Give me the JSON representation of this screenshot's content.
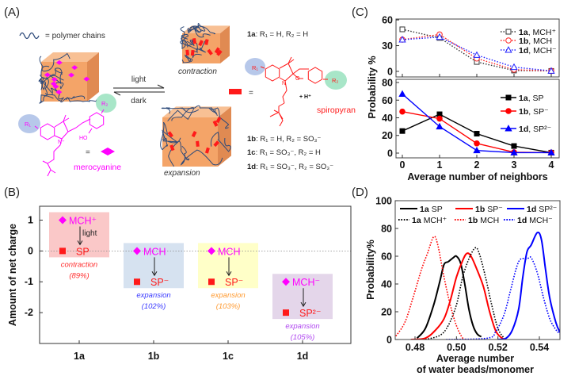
{
  "panel_labels": {
    "a": "(A)",
    "b": "(B)",
    "c": "(C)",
    "d": "(D)"
  },
  "panel_a": {
    "legend_polymer": "= polymer chains",
    "light": "light",
    "dark": "dark",
    "contraction": "contraction",
    "expansion": "expansion",
    "equals": "=",
    "spiropyran": "spiropyran",
    "h_plus": "+ H⁺",
    "merocyanine": "merocyanine",
    "struct_labels": {
      "r1": "R₁",
      "r2": "R₂",
      "n": "N",
      "o": "O",
      "ho": "HO",
      "n_plus": "N⁺"
    },
    "compounds": [
      {
        "id": "1a",
        "def": ":  R₁ = H, R₂ = H"
      },
      {
        "id": "1b",
        "def": ":  R₁ = H, R₂ = SO₃⁻"
      },
      {
        "id": "1c",
        "def": ":  R₁ = SO₃⁻, R₂ = H"
      },
      {
        "id": "1d",
        "def": ":  R₁ = SO₃⁻, R₂ = SO₃⁻"
      }
    ],
    "colors": {
      "merocyanine": "#ff00ff",
      "spiropyran": "#ff1a1a",
      "cube": "#f4a468",
      "chain": "#2d4a7a",
      "r1_highlight": "#b7c8ea",
      "r2_highlight": "#a8e6c8"
    }
  },
  "chart_data": [
    {
      "panel": "B",
      "type": "scatter",
      "categories": [
        "1a",
        "1b",
        "1c",
        "1d"
      ],
      "ylabel": "Amount of net charge",
      "yticks": [
        1,
        0,
        -1,
        -2
      ],
      "ylim": [
        -3.0,
        1.45
      ],
      "reference_line": 0,
      "groups": [
        {
          "from": {
            "label": "MCH⁺",
            "value": 1
          },
          "to": {
            "label": "SP",
            "value": 0
          },
          "arrow_label": "light",
          "effect": "contraction",
          "percent": "(89%)",
          "box_color": "#fac8c8",
          "text_color": "#ff2a2a"
        },
        {
          "from": {
            "label": "MCH",
            "value": 0
          },
          "to": {
            "label": "SP⁻",
            "value": -1
          },
          "arrow_label": "",
          "effect": "expansion",
          "percent": "(102%)",
          "box_color": "#d6e2f0",
          "text_color": "#3a3aff"
        },
        {
          "from": {
            "label": "MCH",
            "value": 0
          },
          "to": {
            "label": "SP⁻",
            "value": -1
          },
          "arrow_label": "",
          "effect": "expansion",
          "percent": "(103%)",
          "box_color": "#ffffc8",
          "text_color": "#ff9a30"
        },
        {
          "from": {
            "label": "MCH⁻",
            "value": -1
          },
          "to": {
            "label": "SP²⁻",
            "value": -2
          },
          "arrow_label": "",
          "effect": "expansion",
          "percent": "(105%)",
          "box_color": "#e4d6ea",
          "text_color": "#b048f0"
        }
      ],
      "colors": {
        "mch_marker": "#ff00ff",
        "sp_marker": "#ff1a1a",
        "mch_text": "#ff00ff",
        "sp_text": "#ff1a1a"
      }
    },
    {
      "panel": "C-top",
      "type": "line",
      "x": [
        0,
        1,
        2,
        3,
        4
      ],
      "ylim": [
        -6.5,
        61
      ],
      "yticks": [
        0,
        30,
        60
      ],
      "line_style": "dotted",
      "legend_position": "top-right",
      "sep": ", ",
      "series": [
        {
          "id": "1a",
          "species": "MCH⁺",
          "values": [
            49,
            39,
            11,
            1,
            0.5
          ],
          "color": "#333333",
          "marker": "square-open"
        },
        {
          "id": "1b",
          "species": "MCH",
          "values": [
            37,
            43,
            15,
            2,
            0.5
          ],
          "color": "#ff2020",
          "marker": "circle-open"
        },
        {
          "id": "1d",
          "species": "MCH⁻",
          "values": [
            37,
            40,
            19,
            5,
            0.5
          ],
          "color": "#2020ff",
          "marker": "triangle-open"
        }
      ]
    },
    {
      "panel": "C-bottom",
      "type": "line",
      "x": [
        0,
        1,
        2,
        3,
        4
      ],
      "xticks": [
        0,
        1,
        2,
        3,
        4
      ],
      "xlabel": "Average number of neighbors",
      "ylabel": "Probability %",
      "ylim": [
        -5.4,
        83.6
      ],
      "yticks": [
        0,
        20,
        40,
        60,
        80
      ],
      "line_style": "solid",
      "legend_position": "top-right",
      "sep": ", ",
      "series": [
        {
          "id": "1a",
          "species": "SP",
          "values": [
            25,
            44,
            22,
            8,
            0.5
          ],
          "color": "#000000",
          "marker": "square"
        },
        {
          "id": "1b",
          "species": "SP⁻",
          "values": [
            47,
            39,
            11,
            1,
            0.5
          ],
          "color": "#ff0000",
          "marker": "circle"
        },
        {
          "id": "1d",
          "species": "SP²⁻",
          "values": [
            67,
            30,
            3,
            0.5,
            0.5
          ],
          "color": "#0000ff",
          "marker": "triangle"
        }
      ]
    },
    {
      "panel": "D",
      "type": "line",
      "xlim": [
        0.47,
        0.55
      ],
      "xticks": [
        "0.48",
        "0.50",
        "0.52",
        "0.54"
      ],
      "ylim": [
        0,
        100
      ],
      "yticks": [
        0,
        20,
        40,
        60,
        80,
        100
      ],
      "ylabel": "Probability%",
      "xlabel_lines": [
        "Average number",
        "of water beads/monomer"
      ],
      "legend_position": "top",
      "series": [
        {
          "id": "1a",
          "species": "SP",
          "style": "solid",
          "color": "#000000",
          "points": [
            [
              0.481,
              1
            ],
            [
              0.485,
              8
            ],
            [
              0.489,
              25
            ],
            [
              0.492,
              42
            ],
            [
              0.494,
              54
            ],
            [
              0.496,
              56
            ],
            [
              0.4985,
              59
            ],
            [
              0.5,
              60
            ],
            [
              0.502,
              55
            ],
            [
              0.504,
              40
            ],
            [
              0.506,
              22
            ],
            [
              0.508,
              10
            ],
            [
              0.51,
              4
            ],
            [
              0.512,
              2
            ]
          ]
        },
        {
          "id": "1b",
          "species": "SP⁻",
          "style": "solid",
          "color": "#ff0000",
          "points": [
            [
              0.478,
              0
            ],
            [
              0.485,
              1
            ],
            [
              0.49,
              7
            ],
            [
              0.494,
              15
            ],
            [
              0.497,
              28
            ],
            [
              0.5,
              45
            ],
            [
              0.503,
              57
            ],
            [
              0.505,
              62
            ],
            [
              0.507,
              60
            ],
            [
              0.51,
              50
            ],
            [
              0.513,
              38
            ],
            [
              0.516,
              20
            ],
            [
              0.519,
              6
            ],
            [
              0.522,
              1
            ],
            [
              0.524,
              0
            ]
          ]
        },
        {
          "id": "1d",
          "species": "SP²⁻",
          "style": "solid",
          "color": "#0000ff",
          "points": [
            [
              0.52,
              0
            ],
            [
              0.524,
              1
            ],
            [
              0.527,
              7
            ],
            [
              0.53,
              22
            ],
            [
              0.532,
              45
            ],
            [
              0.534,
              63
            ],
            [
              0.536,
              68
            ],
            [
              0.539,
              77
            ],
            [
              0.541,
              72
            ],
            [
              0.543,
              50
            ],
            [
              0.545,
              30
            ],
            [
              0.548,
              12
            ],
            [
              0.55,
              5
            ]
          ]
        },
        {
          "id": "1a",
          "species": "MCH⁺",
          "style": "dotted",
          "color": "#000000",
          "points": [
            [
              0.485,
              0
            ],
            [
              0.492,
              3
            ],
            [
              0.496,
              10
            ],
            [
              0.5,
              25
            ],
            [
              0.503,
              45
            ],
            [
              0.506,
              58
            ],
            [
              0.509,
              66
            ],
            [
              0.511,
              62
            ],
            [
              0.514,
              45
            ],
            [
              0.517,
              25
            ],
            [
              0.52,
              8
            ],
            [
              0.523,
              1
            ]
          ]
        },
        {
          "id": "1b",
          "species": "MCH",
          "style": "dotted",
          "color": "#ff0000",
          "points": [
            [
              0.47,
              1
            ],
            [
              0.475,
              12
            ],
            [
              0.479,
              30
            ],
            [
              0.483,
              50
            ],
            [
              0.486,
              62
            ],
            [
              0.489,
              74
            ],
            [
              0.491,
              68
            ],
            [
              0.494,
              45
            ],
            [
              0.497,
              25
            ],
            [
              0.5,
              10
            ],
            [
              0.503,
              1
            ],
            [
              0.505,
              0
            ]
          ]
        },
        {
          "id": "1d",
          "species": "MCH⁻",
          "style": "dotted",
          "color": "#0000ff",
          "points": [
            [
              0.495,
              0
            ],
            [
              0.515,
              1
            ],
            [
              0.519,
              6
            ],
            [
              0.523,
              18
            ],
            [
              0.526,
              35
            ],
            [
              0.529,
              52
            ],
            [
              0.531,
              58
            ],
            [
              0.534,
              58
            ],
            [
              0.536,
              59
            ],
            [
              0.539,
              48
            ],
            [
              0.542,
              30
            ],
            [
              0.545,
              15
            ],
            [
              0.548,
              7
            ],
            [
              0.55,
              4
            ]
          ]
        }
      ]
    }
  ]
}
